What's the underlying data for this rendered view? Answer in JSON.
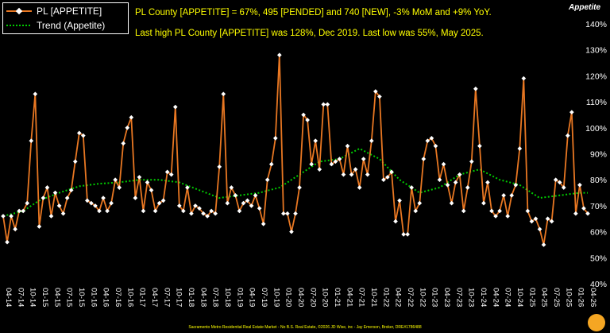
{
  "legend": {
    "series_label": "PL [APPETITE]",
    "trend_label": "Trend (Appetite)"
  },
  "headline": {
    "line1": "PL County [APPETITE] = 67%, 495 [PENDED] and 740 [NEW], -3% MoM and +9% YoY.",
    "line2": "Last high PL County [APPETITE] was 128%, Dec 2019. Last low was 55%, May 2025."
  },
  "axis_title": "Appetite",
  "footer": "Sacramento Metro Residential Real Estate Market - No B.S. Real Estate, ©2026 JD Wise, inc - Jay Emerson, Broker, DRE#1786488",
  "colors": {
    "series": "#e87722",
    "trend": "#00cc00",
    "marker": "#ffffff",
    "headline": "#ffff00",
    "background": "#000000"
  },
  "chart_data": {
    "type": "line",
    "title": "",
    "ylabel": "Appetite",
    "ylim": [
      40,
      140
    ],
    "y_ticks": [
      "40%",
      "50%",
      "60%",
      "70%",
      "80%",
      "90%",
      "100%",
      "110%",
      "120%",
      "130%",
      "140%"
    ],
    "x_labels": [
      "04-14",
      "07-14",
      "10-14",
      "01-15",
      "04-15",
      "07-15",
      "10-15",
      "01-16",
      "04-16",
      "07-16",
      "10-16",
      "01-17",
      "04-17",
      "07-17",
      "10-17",
      "01-18",
      "04-18",
      "07-18",
      "10-18",
      "01-19",
      "04-19",
      "07-19",
      "10-19",
      "01-20",
      "04-20",
      "07-20",
      "10-20",
      "01-21",
      "04-21",
      "07-21",
      "10-21",
      "01-22",
      "04-22",
      "07-22",
      "10-22",
      "01-23",
      "04-23",
      "07-23",
      "10-23",
      "01-24",
      "04-24",
      "07-24",
      "10-24",
      "01-25",
      "04-25",
      "07-25",
      "10-25",
      "01-26",
      "04-26"
    ],
    "grid": false,
    "legend_position": "top-left",
    "series": [
      {
        "name": "PL [APPETITE]",
        "values": [
          66,
          56,
          66,
          61,
          68,
          68,
          71,
          95,
          113,
          62,
          73,
          77,
          66,
          75,
          70,
          67,
          73,
          76,
          87,
          98,
          97,
          72,
          71,
          70,
          68,
          73,
          68,
          71,
          80,
          77,
          94,
          100,
          104,
          73,
          81,
          68,
          79,
          76,
          68,
          71,
          72,
          83,
          82,
          108,
          70,
          68,
          77,
          67,
          70,
          69,
          67,
          66,
          68,
          67,
          85,
          113,
          71,
          77,
          74,
          68,
          71,
          72,
          70,
          74,
          69,
          63,
          80,
          86,
          96,
          128,
          67,
          67,
          60,
          67,
          77,
          105,
          103,
          86,
          95,
          84,
          109,
          109,
          86,
          87,
          88,
          82,
          93,
          82,
          84,
          77,
          88,
          82,
          95,
          114,
          112,
          80,
          81,
          83,
          64,
          72,
          59,
          59,
          77,
          68,
          71,
          88,
          95,
          96,
          93,
          80,
          86,
          78,
          71,
          79,
          82,
          68,
          77,
          87,
          115,
          93,
          71,
          79,
          68,
          66,
          68,
          74,
          66,
          74,
          78,
          92,
          119,
          68,
          64,
          65,
          61,
          55,
          65,
          64,
          80,
          79,
          77,
          97,
          106,
          67,
          78,
          69,
          67
        ]
      },
      {
        "name": "Trend (Appetite)",
        "values": [
          66,
          66.4,
          66.8,
          67.2,
          67.6,
          68,
          69,
          70,
          71,
          72,
          72.6,
          73.2,
          73.8,
          74.4,
          75,
          75.5,
          76,
          76.5,
          77,
          77.5,
          77.7,
          77.9,
          78.1,
          78.3,
          78.5,
          78.6,
          78.7,
          78.8,
          78.9,
          79,
          79.2,
          79.4,
          79.6,
          79.8,
          80,
          80,
          80,
          80,
          80,
          80,
          79.8,
          79.6,
          79.4,
          79.2,
          79,
          78.4,
          77.8,
          77.2,
          76.6,
          76,
          75.4,
          74.8,
          74.2,
          73.6,
          73,
          73.2,
          73.4,
          73.6,
          73.8,
          74,
          74.2,
          74.4,
          74.6,
          74.8,
          75,
          75.4,
          75.8,
          76.2,
          76.6,
          77,
          78,
          79,
          80,
          81,
          82,
          83,
          84,
          85,
          86,
          87,
          87.2,
          87.4,
          87.6,
          87.8,
          88,
          88.8,
          89.6,
          90.4,
          91.2,
          92,
          91.2,
          90.4,
          89.6,
          88.8,
          88,
          86.4,
          84.8,
          83.2,
          81.6,
          80,
          79,
          78,
          77,
          76,
          75,
          75.4,
          75.8,
          76.2,
          76.6,
          77,
          78,
          79,
          80,
          81,
          82,
          82.4,
          82.8,
          83.2,
          83.6,
          84,
          83.2,
          82.4,
          81.6,
          80.8,
          80,
          79.6,
          79.2,
          78.8,
          78.4,
          78,
          77,
          76,
          75,
          74,
          73,
          73.2,
          73.4,
          73.6,
          73.8,
          74,
          74.2,
          74.4,
          74.6,
          74.8,
          75,
          75,
          75
        ]
      }
    ]
  }
}
